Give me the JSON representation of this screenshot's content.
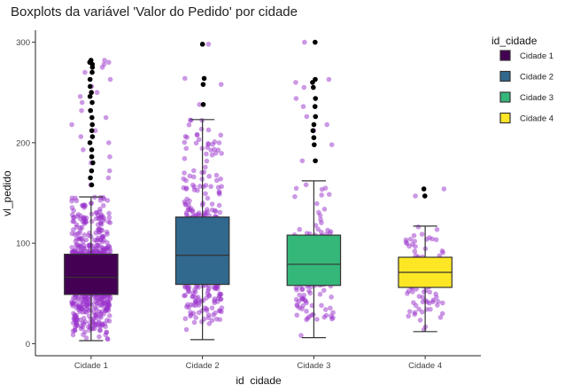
{
  "chart_data": {
    "type": "boxplot",
    "title": "Boxplots da variável 'Valor do Pedido' por cidade",
    "xlabel": "id_cidade",
    "ylabel": "vl_pedido",
    "ylim": [
      -12,
      312
    ],
    "yticks": [
      0,
      100,
      200,
      300
    ],
    "grid": false,
    "legend": {
      "title": "id_cidade",
      "position": "right",
      "entries": [
        "Cidade 1",
        "Cidade 2",
        "Cidade 3",
        "Cidade 4"
      ]
    },
    "jitter_color": "#9932CC",
    "outlier_color": "#000000",
    "categories": [
      "Cidade 1",
      "Cidade 2",
      "Cidade 3",
      "Cidade 4"
    ],
    "series": [
      {
        "color": "#440154",
        "n_points": 800,
        "min": 3,
        "q1": 49,
        "median": 66,
        "q3": 89,
        "max": 146,
        "outliers": [
          158,
          165,
          172,
          180,
          186,
          193,
          200,
          206,
          212,
          218,
          225,
          232,
          240,
          246,
          250,
          256,
          263,
          270,
          275,
          278,
          280,
          282
        ]
      },
      {
        "color": "#31688E",
        "n_points": 400,
        "min": 4,
        "q1": 59,
        "median": 88,
        "q3": 126,
        "max": 223,
        "outliers": [
          238,
          258,
          264,
          298
        ]
      },
      {
        "color": "#35B779",
        "n_points": 140,
        "min": 6,
        "q1": 58,
        "median": 79,
        "q3": 108,
        "max": 162,
        "outliers": [
          182,
          198,
          205,
          212,
          218,
          226,
          236,
          244,
          255,
          260,
          263,
          300
        ]
      },
      {
        "color": "#FDE725",
        "n_points": 110,
        "min": 12,
        "q1": 56,
        "median": 71,
        "q3": 86,
        "max": 117,
        "outliers": [
          147,
          154
        ]
      }
    ]
  }
}
